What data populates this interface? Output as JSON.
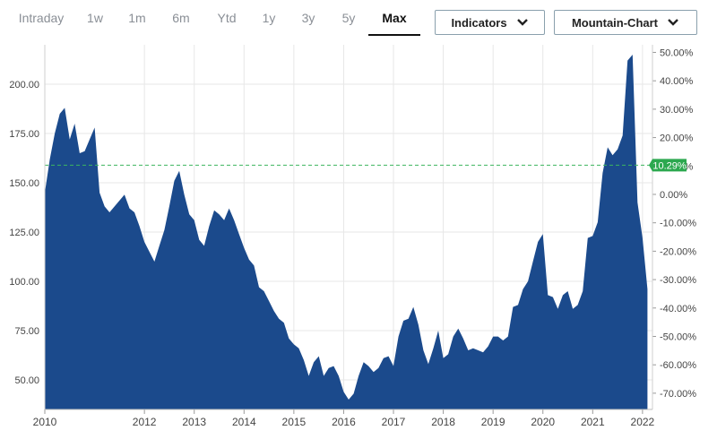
{
  "toolbar": {
    "tabs": [
      "Intraday",
      "1w",
      "1m",
      "6m",
      "Ytd",
      "1y",
      "3y",
      "5y",
      "Max"
    ],
    "active_tab": "Max",
    "indicators_label": "Indicators",
    "chart_type_label": "Mountain-Chart"
  },
  "chart_data": {
    "type": "area",
    "title": "",
    "xlabel": "",
    "ylabel": "",
    "x_tick_labels": [
      "2010",
      "2012",
      "2013",
      "2014",
      "2015",
      "2016",
      "2017",
      "2018",
      "2019",
      "2020",
      "2021",
      "2022"
    ],
    "y_ticks_left": [
      "50.00",
      "75.00",
      "100.00",
      "125.00",
      "150.00",
      "175.00",
      "200.00"
    ],
    "y_ticks_right": [
      "50.00%",
      "40.00%",
      "30.00%",
      "20.00%",
      "10.00%",
      "0.00%",
      "-10.00%",
      "-20.00%",
      "-30.00%",
      "-40.00%",
      "-50.00%",
      "-60.00%",
      "-70.00%"
    ],
    "ylim": [
      35,
      220
    ],
    "reference_line_value": 158.9,
    "current_change_label": "10.29%",
    "colors": {
      "area": "#1b4a8c",
      "reference": "#3cb55e",
      "badge": "#2ca84f"
    },
    "x": [
      2010.0,
      2010.1,
      2010.2,
      2010.3,
      2010.4,
      2010.5,
      2010.6,
      2010.7,
      2010.8,
      2010.9,
      2011.0,
      2011.1,
      2011.2,
      2011.3,
      2011.4,
      2011.5,
      2011.6,
      2011.7,
      2011.8,
      2011.9,
      2012.0,
      2012.1,
      2012.2,
      2012.3,
      2012.4,
      2012.5,
      2012.6,
      2012.7,
      2012.8,
      2012.9,
      2013.0,
      2013.1,
      2013.2,
      2013.3,
      2013.4,
      2013.5,
      2013.6,
      2013.7,
      2013.8,
      2013.9,
      2014.0,
      2014.1,
      2014.2,
      2014.3,
      2014.4,
      2014.5,
      2014.6,
      2014.7,
      2014.8,
      2014.9,
      2015.0,
      2015.1,
      2015.2,
      2015.3,
      2015.4,
      2015.5,
      2015.6,
      2015.7,
      2015.8,
      2015.9,
      2016.0,
      2016.1,
      2016.2,
      2016.3,
      2016.4,
      2016.5,
      2016.6,
      2016.7,
      2016.8,
      2016.9,
      2017.0,
      2017.1,
      2017.2,
      2017.3,
      2017.4,
      2017.5,
      2017.6,
      2017.7,
      2017.8,
      2017.9,
      2018.0,
      2018.1,
      2018.2,
      2018.3,
      2018.4,
      2018.5,
      2018.6,
      2018.7,
      2018.8,
      2018.9,
      2019.0,
      2019.1,
      2019.2,
      2019.3,
      2019.4,
      2019.5,
      2019.6,
      2019.7,
      2019.8,
      2019.9,
      2020.0,
      2020.1,
      2020.2,
      2020.3,
      2020.4,
      2020.5,
      2020.6,
      2020.7,
      2020.8,
      2020.9,
      2021.0,
      2021.1,
      2021.2,
      2021.3,
      2021.4,
      2021.5,
      2021.6,
      2021.7,
      2021.8,
      2021.9,
      2022.0,
      2022.1
    ],
    "values": [
      145,
      162,
      175,
      185,
      188,
      172,
      180,
      165,
      166,
      172,
      178,
      145,
      138,
      135,
      138,
      141,
      144,
      137,
      135,
      128,
      120,
      115,
      110,
      118,
      126,
      138,
      151,
      156,
      144,
      134,
      131,
      121,
      118,
      128,
      136,
      134,
      131,
      137,
      131,
      124,
      117,
      111,
      108,
      97,
      95,
      90,
      85,
      81,
      79,
      71,
      68,
      66,
      60,
      52,
      59,
      62,
      52,
      56,
      57,
      52,
      44,
      40,
      43,
      52,
      59,
      57,
      54,
      56,
      61,
      62,
      57,
      72,
      80,
      81,
      87,
      78,
      65,
      58,
      66,
      75,
      61,
      63,
      72,
      76,
      71,
      65,
      66,
      65,
      64,
      67,
      72,
      72,
      70,
      72,
      87,
      88,
      96,
      100,
      110,
      120,
      124,
      93,
      92,
      86,
      93,
      95,
      86,
      88,
      95,
      122,
      123,
      130,
      155,
      168,
      164,
      167,
      174,
      212,
      215,
      140,
      122,
      96
    ]
  }
}
